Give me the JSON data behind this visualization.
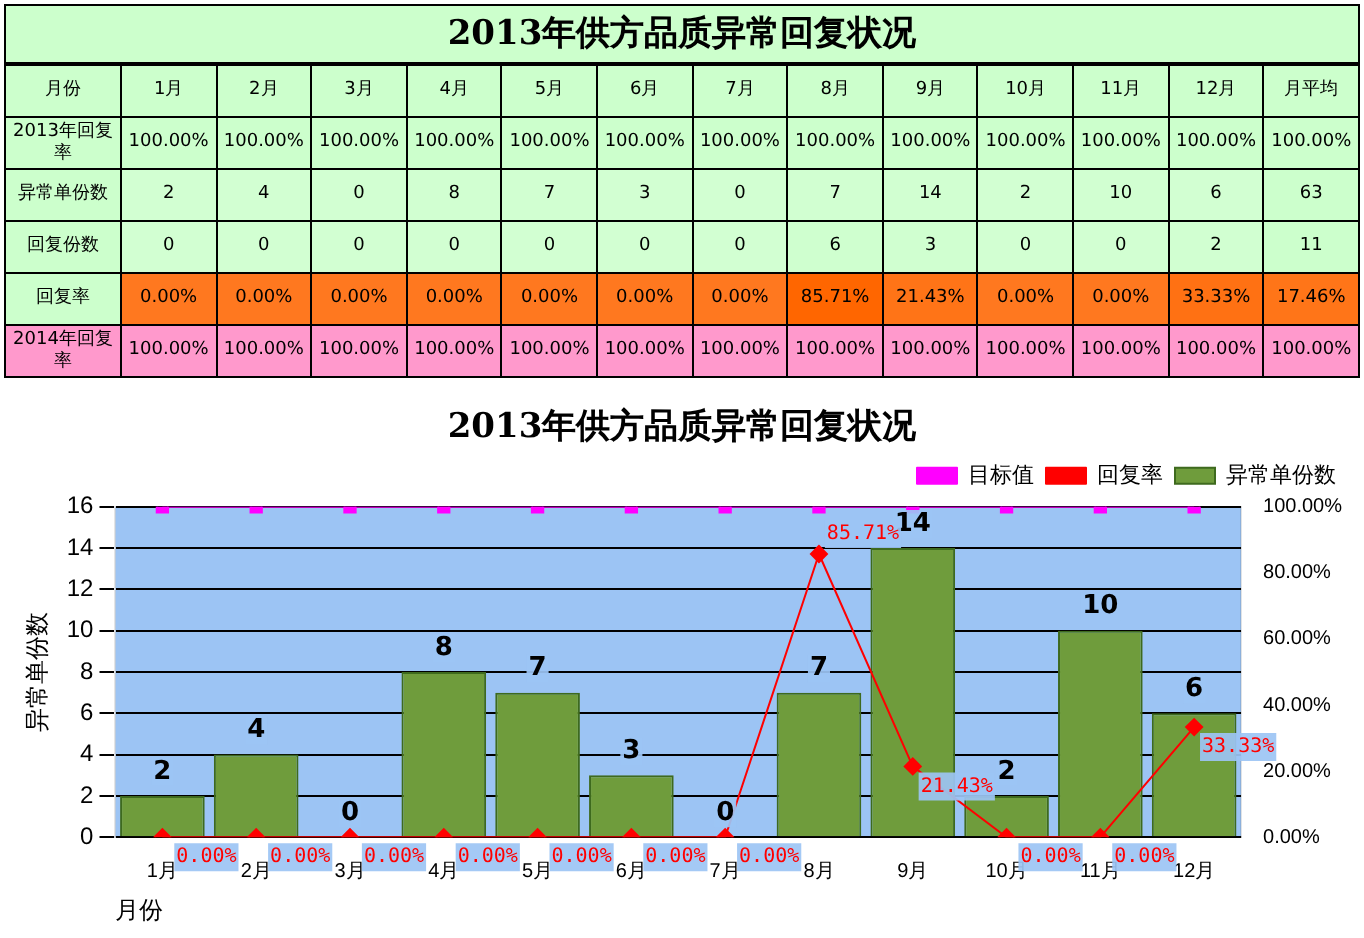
{
  "chart_data": [
    {
      "type": "heatmap",
      "title": "2013年供方品质异常回复状况",
      "xlabel": "月份",
      "categories": [
        "1月",
        "2月",
        "3月",
        "4月",
        "5月",
        "6月",
        "7月",
        "8月",
        "9月",
        "10月",
        "11月",
        "12月",
        "月平均"
      ],
      "cells": [
        [
          100,
          100,
          100,
          100,
          100,
          100,
          100,
          100,
          100,
          100,
          100,
          100,
          100
        ],
        [
          2,
          4,
          0,
          8,
          7,
          3,
          0,
          7,
          14,
          2,
          10,
          6,
          63
        ],
        [
          0,
          0,
          0,
          0,
          0,
          0,
          0,
          6,
          3,
          0,
          0,
          2,
          11
        ],
        [
          0,
          0,
          0,
          0,
          0,
          0,
          0,
          85.71,
          21.43,
          0,
          0,
          33.33,
          17.46
        ],
        [
          100,
          100,
          100,
          100,
          100,
          100,
          100,
          100,
          100,
          100,
          100,
          100,
          100
        ]
      ],
      "y_categories": [
        "2013年回复率",
        "异常单份数",
        "回复份数",
        "回复率",
        "2014年回复率"
      ],
      "colors": [
        "#ccffcc",
        "#ccffcc",
        "#ccffcc",
        "#ff6600",
        "#ff99cc"
      ],
      "cell_labels": [
        [
          "100.00%",
          "100.00%",
          "100.00%",
          "100.00%",
          "100.00%",
          "100.00%",
          "100.00%",
          "100.00%",
          "100.00%",
          "100.00%",
          "100.00%",
          "100.00%",
          "100.00%"
        ],
        [
          "2",
          "4",
          "0",
          "8",
          "7",
          "3",
          "0",
          "7",
          "14",
          "2",
          "10",
          "6",
          "63"
        ],
        [
          "0",
          "0",
          "0",
          "0",
          "0",
          "0",
          "0",
          "6",
          "3",
          "0",
          "0",
          "2",
          "11"
        ],
        [
          "0.00%",
          "0.00%",
          "0.00%",
          "0.00%",
          "0.00%",
          "0.00%",
          "0.00%",
          "85.71%",
          "21.43%",
          "0.00%",
          "0.00%",
          "33.33%",
          "17.46%"
        ],
        [
          "100.00%",
          "100.00%",
          "100.00%",
          "100.00%",
          "100.00%",
          "100.00%",
          "100.00%",
          "100.00%",
          "100.00%",
          "100.00%",
          "100.00%",
          "100.00%",
          "100.00%"
        ]
      ]
    },
    {
      "type": "bar",
      "title": "2013年供方品质异常回复状况",
      "xlabel": "月份",
      "ylabel": "异常单份数",
      "categories": [
        "1月",
        "2月",
        "3月",
        "4月",
        "5月",
        "6月",
        "7月",
        "8月",
        "9月",
        "10月",
        "11月",
        "12月"
      ],
      "series": [
        {
          "name": "异常单份数",
          "type": "bar",
          "color": "#6f9c3c",
          "values": [
            2,
            4,
            0,
            8,
            7,
            3,
            0,
            7,
            14,
            2,
            10,
            6
          ],
          "value_labels": [
            "2",
            "4",
            "0",
            "8",
            "7",
            "3",
            "0",
            "7",
            "14",
            "2",
            "10",
            "6"
          ]
        },
        {
          "name": "目标值",
          "type": "line",
          "axis": "y2",
          "color": "#ff00ff",
          "marker": "square",
          "values": [
            100,
            100,
            100,
            100,
            100,
            100,
            100,
            100,
            100,
            100,
            100,
            100
          ]
        },
        {
          "name": "回复率",
          "type": "line",
          "axis": "y2",
          "color": "#ff0000",
          "marker": "diamond",
          "values": [
            0,
            0,
            0,
            0,
            0,
            0,
            0,
            85.71,
            21.43,
            0,
            0,
            33.33
          ],
          "value_labels": [
            "0.00%",
            "0.00%",
            "0.00%",
            "0.00%",
            "0.00%",
            "0.00%",
            "0.00%",
            "85.71%",
            "21.43%",
            "0.00%",
            "0.00%",
            "33.33%"
          ]
        }
      ],
      "ylim": [
        0,
        16
      ],
      "yticks": [
        0,
        2,
        4,
        6,
        8,
        10,
        12,
        14,
        16
      ],
      "y2lim": [
        0,
        100
      ],
      "y2ticks": [
        {
          "value": 0,
          "label": "0.00%"
        },
        {
          "value": 20,
          "label": "20.00%"
        },
        {
          "value": 40,
          "label": "40.00%"
        },
        {
          "value": 60,
          "label": "60.00%"
        },
        {
          "value": 80,
          "label": "80.00%"
        },
        {
          "value": 100,
          "label": "100.00%"
        }
      ],
      "grid": "y",
      "legend": "top right"
    }
  ]
}
